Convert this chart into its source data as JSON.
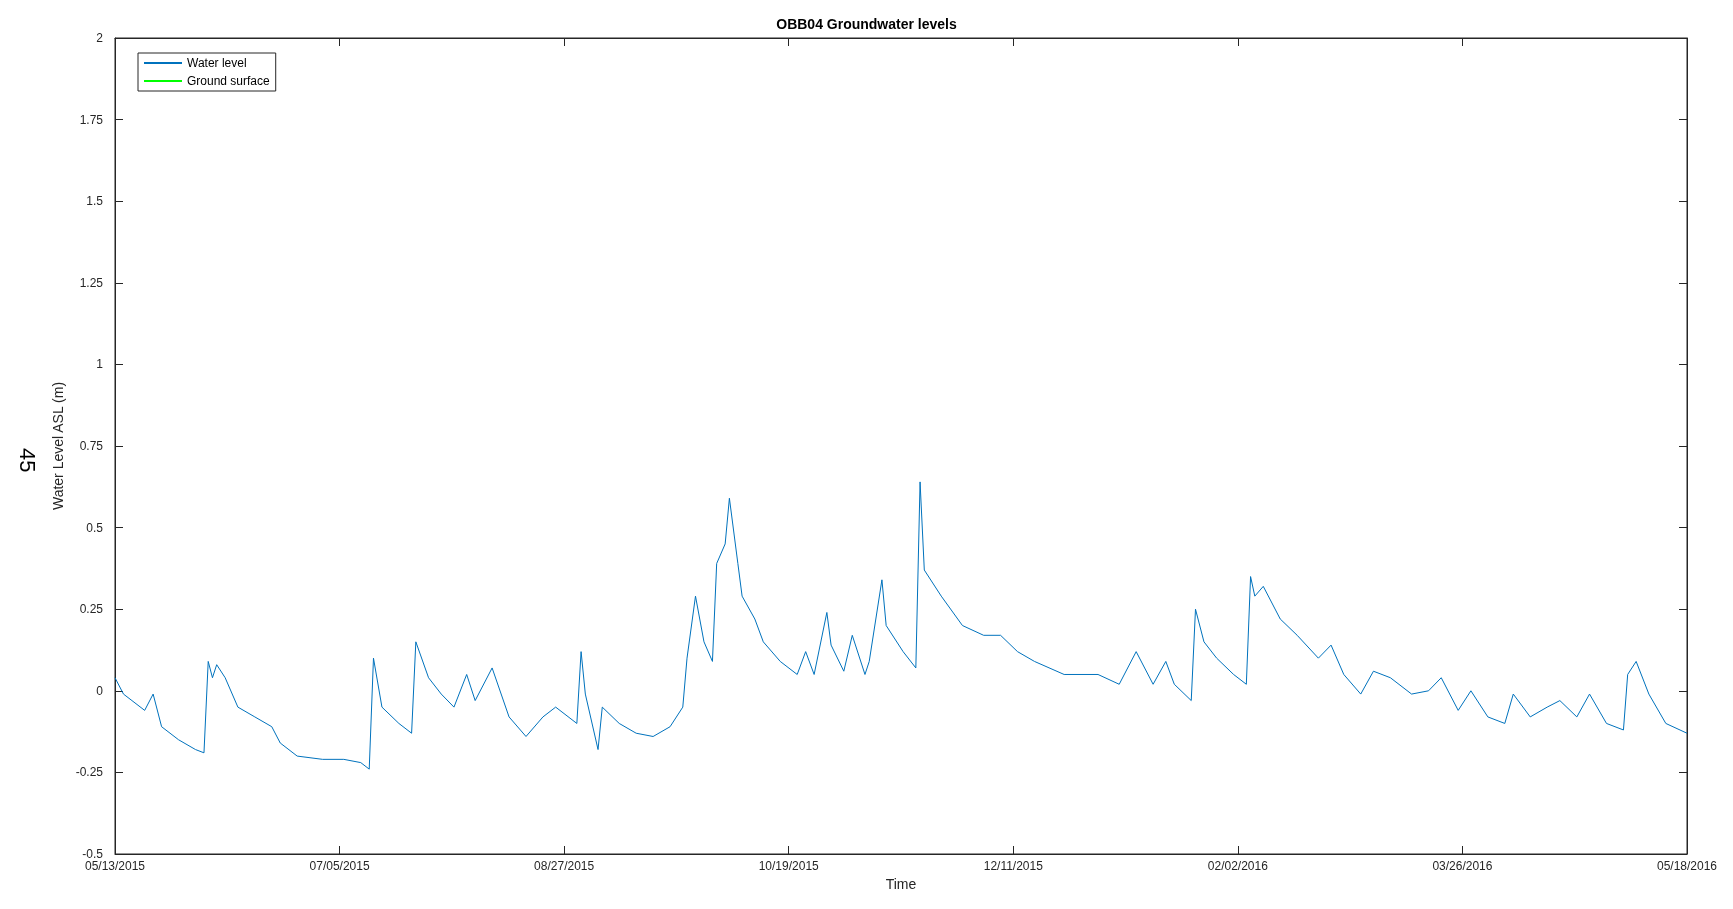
{
  "chart_data": {
    "type": "line",
    "title": "OBB04 Groundwater levels",
    "xlabel": "Time",
    "ylabel": "Water Level ASL (m)",
    "annotations": [
      "45"
    ],
    "x": [
      "2015-05-13",
      "2015-05-15",
      "2015-05-17",
      "2015-05-20",
      "2015-05-22",
      "2015-05-24",
      "2015-05-28",
      "2015-06-01",
      "2015-06-03",
      "2015-06-04",
      "2015-06-05",
      "2015-06-06",
      "2015-06-08",
      "2015-06-11",
      "2015-06-15",
      "2015-06-19",
      "2015-06-21",
      "2015-06-25",
      "2015-07-01",
      "2015-07-06",
      "2015-07-10",
      "2015-07-12",
      "2015-07-13",
      "2015-07-15",
      "2015-07-19",
      "2015-07-22",
      "2015-07-23",
      "2015-07-26",
      "2015-07-29",
      "2015-08-01",
      "2015-08-04",
      "2015-08-06",
      "2015-08-10",
      "2015-08-14",
      "2015-08-18",
      "2015-08-22",
      "2015-08-25",
      "2015-08-30",
      "2015-08-31",
      "2015-09-01",
      "2015-09-04",
      "2015-09-05",
      "2015-09-09",
      "2015-09-13",
      "2015-09-17",
      "2015-09-21",
      "2015-09-24",
      "2015-09-25",
      "2015-09-27",
      "2015-09-29",
      "2015-10-01",
      "2015-10-02",
      "2015-10-04",
      "2015-10-05",
      "2015-10-07",
      "2015-10-08",
      "2015-10-11",
      "2015-10-13",
      "2015-10-17",
      "2015-10-21",
      "2015-10-23",
      "2015-10-25",
      "2015-10-28",
      "2015-10-29",
      "2015-11-01",
      "2015-11-03",
      "2015-11-06",
      "2015-11-07",
      "2015-11-10",
      "2015-11-11",
      "2015-11-15",
      "2015-11-18",
      "2015-11-19",
      "2015-11-20",
      "2015-11-24",
      "2015-11-29",
      "2015-12-04",
      "2015-12-08",
      "2015-12-12",
      "2015-12-16",
      "2015-12-23",
      "2015-12-31",
      "2016-01-05",
      "2016-01-09",
      "2016-01-13",
      "2016-01-16",
      "2016-01-18",
      "2016-01-22",
      "2016-01-23",
      "2016-01-25",
      "2016-01-28",
      "2016-02-01",
      "2016-02-04",
      "2016-02-05",
      "2016-02-06",
      "2016-02-08",
      "2016-02-12",
      "2016-02-16",
      "2016-02-21",
      "2016-02-24",
      "2016-02-27",
      "2016-03-02",
      "2016-03-05",
      "2016-03-09",
      "2016-03-14",
      "2016-03-18",
      "2016-03-21",
      "2016-03-25",
      "2016-03-28",
      "2016-04-01",
      "2016-04-05",
      "2016-04-07",
      "2016-04-11",
      "2016-04-15",
      "2016-04-18",
      "2016-04-22",
      "2016-04-25",
      "2016-04-29",
      "2016-05-03",
      "2016-05-04",
      "2016-05-06",
      "2016-05-09",
      "2016-05-13",
      "2016-05-18"
    ],
    "series": [
      {
        "name": "Water level",
        "color": "#0072bd",
        "values": [
          0.04,
          -0.01,
          -0.03,
          -0.06,
          -0.01,
          -0.11,
          -0.15,
          -0.18,
          -0.19,
          0.09,
          0.04,
          0.08,
          0.04,
          -0.05,
          -0.08,
          -0.11,
          -0.16,
          -0.2,
          -0.21,
          -0.21,
          -0.22,
          -0.24,
          0.1,
          -0.05,
          -0.1,
          -0.13,
          0.15,
          0.04,
          -0.01,
          -0.05,
          0.05,
          -0.03,
          0.07,
          -0.08,
          -0.14,
          -0.08,
          -0.05,
          -0.1,
          0.12,
          -0.01,
          -0.18,
          -0.05,
          -0.1,
          -0.13,
          -0.14,
          -0.11,
          -0.05,
          0.1,
          0.29,
          0.15,
          0.09,
          0.39,
          0.45,
          0.59,
          0.39,
          0.29,
          0.22,
          0.15,
          0.09,
          0.05,
          0.12,
          0.05,
          0.24,
          0.14,
          0.06,
          0.17,
          0.05,
          0.09,
          0.34,
          0.2,
          0.12,
          0.07,
          0.64,
          0.37,
          0.29,
          0.2,
          0.17,
          0.17,
          0.12,
          0.09,
          0.05,
          0.05,
          0.02,
          0.12,
          0.02,
          0.09,
          0.02,
          -0.03,
          0.25,
          0.15,
          0.1,
          0.05,
          0.02,
          0.35,
          0.29,
          0.32,
          0.22,
          0.17,
          0.1,
          0.14,
          0.05,
          -0.01,
          0.06,
          0.04,
          -0.01,
          0,
          0.04,
          -0.06,
          0,
          -0.08,
          -0.1,
          -0.01,
          -0.08,
          -0.05,
          -0.03,
          -0.08,
          -0.01,
          -0.1,
          -0.12,
          0.05,
          0.09,
          -0.01,
          -0.1,
          -0.13
        ]
      },
      {
        "name": "Ground surface",
        "color": "#00ff00",
        "values": [
          null,
          null,
          null,
          null,
          null,
          null,
          null,
          null,
          null,
          null,
          null,
          null,
          null,
          null,
          null,
          null,
          null,
          null,
          null,
          null,
          null,
          null,
          null,
          null,
          null,
          null,
          null,
          null,
          null,
          null,
          null,
          null,
          null,
          null,
          null,
          null,
          null,
          null,
          null,
          null,
          null,
          null,
          null,
          null,
          null,
          null,
          null,
          null,
          null,
          null,
          null,
          null,
          null,
          null,
          null,
          null,
          null,
          null,
          null,
          null,
          null,
          null,
          null,
          null,
          null,
          null,
          null,
          null,
          null,
          null,
          null,
          null,
          null,
          null,
          null,
          null,
          null,
          null,
          null,
          null,
          null,
          null,
          null,
          null,
          null,
          null,
          null,
          null,
          null,
          null,
          null,
          null,
          null,
          null,
          null,
          null,
          null,
          null,
          null,
          null,
          null,
          null,
          null,
          null,
          null,
          null,
          null,
          null,
          null,
          null,
          null,
          null,
          null,
          null,
          null,
          null,
          null,
          null,
          null,
          null,
          null,
          null,
          null,
          null
        ]
      }
    ],
    "xlim": [
      "2015-05-13",
      "2016-05-18"
    ],
    "xticks": [
      {
        "value": "2015-05-13",
        "label": "05/13/2015"
      },
      {
        "value": "2015-07-05",
        "label": "07/05/2015"
      },
      {
        "value": "2015-08-27",
        "label": "08/27/2015"
      },
      {
        "value": "2015-10-19",
        "label": "10/19/2015"
      },
      {
        "value": "2015-12-11",
        "label": "12/11/2015"
      },
      {
        "value": "2016-02-02",
        "label": "02/02/2016"
      },
      {
        "value": "2016-03-26",
        "label": "03/26/2016"
      },
      {
        "value": "2016-05-18",
        "label": "05/18/2016"
      }
    ],
    "ylim": [
      -0.5,
      2
    ],
    "yticks": [
      -0.5,
      -0.25,
      0,
      0.25,
      0.5,
      0.75,
      1,
      1.25,
      1.5,
      1.75,
      2
    ],
    "grid": false,
    "legend": "top left",
    "marker": "none",
    "line_style": "solid"
  }
}
